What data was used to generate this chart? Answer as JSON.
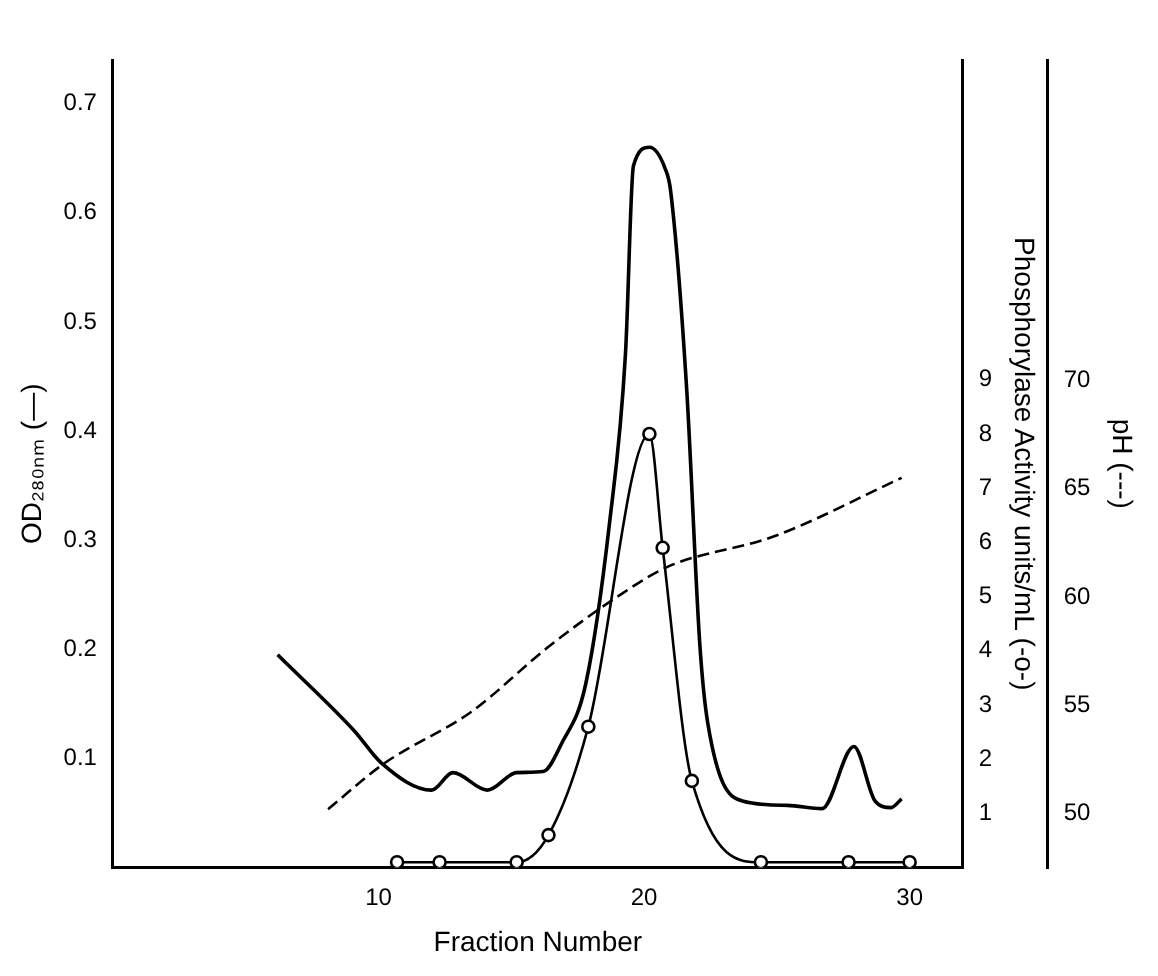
{
  "chart_data": {
    "type": "line",
    "xlabel": "Fraction Number",
    "ylabel": "OD₂₈₀ₙₘ (—)",
    "y2label": "Phosphorylase Activity units/mL (-o-)",
    "y3label": "pH (---)",
    "xlim": [
      0,
      32
    ],
    "xticks": [
      10,
      20,
      30
    ],
    "ylim": [
      0,
      0.74
    ],
    "yticks": [
      0.1,
      0.2,
      0.3,
      0.4,
      0.5,
      0.6,
      0.7
    ],
    "y2lim": [
      0,
      14.9
    ],
    "y2ticks": [
      1,
      2,
      3,
      4,
      5,
      6,
      7,
      8,
      9
    ],
    "y3lim": [
      47.5,
      84.8
    ],
    "y3ticks": [
      50,
      55,
      60,
      65,
      70
    ],
    "grid": false,
    "legend": false,
    "series": [
      {
        "type": "line",
        "color": "#000000",
        "marker": "none",
        "line_style": "solid",
        "x": [
          6.2,
          9.1,
          10.1,
          12.0,
          12.8,
          14.1,
          15.2,
          16.2,
          16.9,
          17.8,
          18.7,
          19.3,
          19.6,
          20.2,
          20.8,
          21.0,
          21.6,
          22.1,
          22.4,
          23.7,
          25.4,
          26.7,
          27.9,
          28.7,
          29.3,
          29.7
        ],
        "values": [
          0.195,
          0.125,
          0.096,
          0.071,
          0.087,
          0.071,
          0.087,
          0.088,
          0.114,
          0.168,
          0.316,
          0.471,
          0.643,
          0.66,
          0.64,
          0.62,
          0.44,
          0.204,
          0.132,
          0.061,
          0.057,
          0.054,
          0.111,
          0.061,
          0.055,
          0.063
        ]
      },
      {
        "type": "line",
        "axis": "y2",
        "color": "#000000",
        "marker": "circle",
        "line_style": "solid",
        "x": [
          10.7,
          12.3,
          15.2,
          16.4,
          17.9,
          20.2,
          20.7,
          21.8,
          24.4,
          27.7,
          30
        ],
        "values": [
          0.1,
          0.1,
          0.1,
          0.6,
          2.6,
          8,
          5.9,
          1.6,
          0.1,
          0.1,
          0.1
        ]
      },
      {
        "type": "line",
        "axis": "y3",
        "color": "#000000",
        "marker": "none",
        "line_style": "dashed",
        "x": [
          8.1,
          10.2,
          13.5,
          16.4,
          19.1,
          20.9,
          24.9,
          29.7
        ],
        "values": [
          50.2,
          52.3,
          54.7,
          57.7,
          60.1,
          61.4,
          62.8,
          65.5
        ]
      }
    ]
  }
}
